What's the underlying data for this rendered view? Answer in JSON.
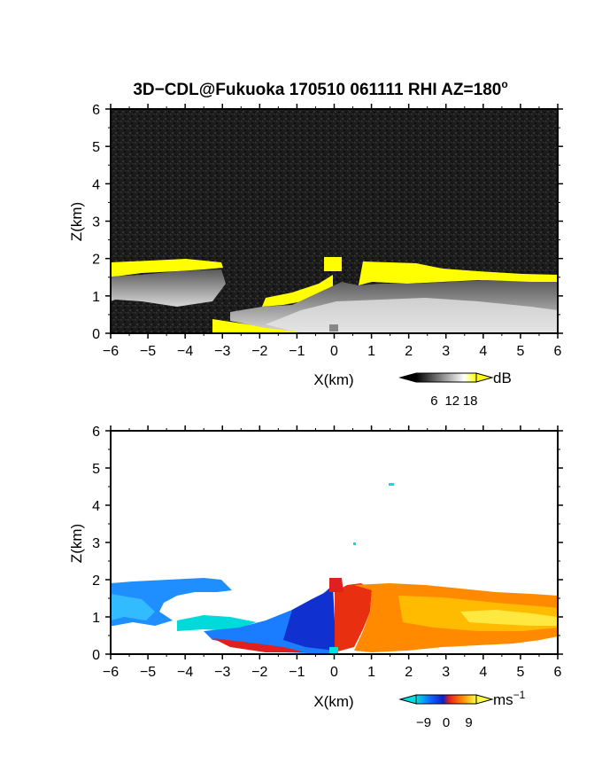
{
  "figure": {
    "title": "3D−CDL@Fukuoka 170510 061111 RHI AZ=180",
    "title_sup": "o"
  },
  "chart_data": [
    {
      "type": "heatmap",
      "variable": "signal intensity",
      "xlabel": "X(km)",
      "ylabel": "Z(km)",
      "xlim": [
        -6,
        6
      ],
      "ylim": [
        0,
        6
      ],
      "x_ticks": [
        "−6",
        "−5",
        "−4",
        "−3",
        "−2",
        "−1",
        "0",
        "1",
        "2",
        "3",
        "4",
        "5",
        "6"
      ],
      "y_ticks": [
        "0",
        "1",
        "2",
        "3",
        "4",
        "5",
        "6"
      ],
      "colorbar": {
        "unit": "dB",
        "ticks": [
          "6",
          "12",
          "18"
        ],
        "range": [
          0,
          20
        ],
        "colors": [
          "#000000",
          "#ffffff",
          "#ffff00"
        ]
      },
      "background": "#1a1a1a",
      "echo_top_km": [
        {
          "x": -6.0,
          "z": 1.8
        },
        {
          "x": -5.0,
          "z": 1.85
        },
        {
          "x": -4.0,
          "z": 1.9
        },
        {
          "x": -3.2,
          "z": 1.9
        },
        {
          "x": -3.0,
          "z": 1.1
        },
        {
          "x": -2.0,
          "z": 0.95
        },
        {
          "x": -1.0,
          "z": 1.1
        },
        {
          "x": -0.3,
          "z": 1.3
        },
        {
          "x": 0.0,
          "z": 1.95
        },
        {
          "x": 0.8,
          "z": 1.9
        },
        {
          "x": 1.5,
          "z": 1.85
        },
        {
          "x": 2.5,
          "z": 1.65
        },
        {
          "x": 3.5,
          "z": 1.7
        },
        {
          "x": 4.5,
          "z": 1.65
        },
        {
          "x": 5.5,
          "z": 1.6
        },
        {
          "x": 6.0,
          "z": 1.5
        }
      ]
    },
    {
      "type": "heatmap",
      "variable": "radial velocity",
      "xlabel": "X(km)",
      "ylabel": "Z(km)",
      "xlim": [
        -6,
        6
      ],
      "ylim": [
        0,
        6
      ],
      "x_ticks": [
        "−6",
        "−5",
        "−4",
        "−3",
        "−2",
        "−1",
        "0",
        "1",
        "2",
        "3",
        "4",
        "5",
        "6"
      ],
      "y_ticks": [
        "0",
        "1",
        "2",
        "3",
        "4",
        "5",
        "6"
      ],
      "colorbar": {
        "unit": "ms",
        "unit_sup": "−1",
        "ticks": [
          "−9",
          "0",
          "9"
        ],
        "range": [
          -12,
          12
        ],
        "colors": [
          "#00e0e0",
          "#1060ff",
          "#1020c0",
          "#e02020",
          "#ff8000",
          "#ffff40"
        ]
      },
      "background": "#ffffff",
      "regions": [
        {
          "x0": -6.0,
          "x1": -3.0,
          "z0": 1.0,
          "z1": 1.95,
          "velocity": -8
        },
        {
          "x0": -3.0,
          "x1": -1.0,
          "z0": 0.3,
          "z1": 1.0,
          "velocity": -7
        },
        {
          "x0": -1.0,
          "x1": 0.0,
          "z0": 0.2,
          "z1": 1.5,
          "velocity": -4
        },
        {
          "x0": 0.0,
          "x1": 1.0,
          "z0": 0.2,
          "z1": 1.9,
          "velocity": 3
        },
        {
          "x0": 1.0,
          "x1": 6.0,
          "z0": 0.3,
          "z1": 1.85,
          "velocity": 6
        }
      ],
      "isolated_points_km": [
        {
          "x": 1.5,
          "z": 4.55,
          "velocity": -9
        },
        {
          "x": 0.55,
          "z": 2.95,
          "velocity": -9
        }
      ]
    }
  ]
}
